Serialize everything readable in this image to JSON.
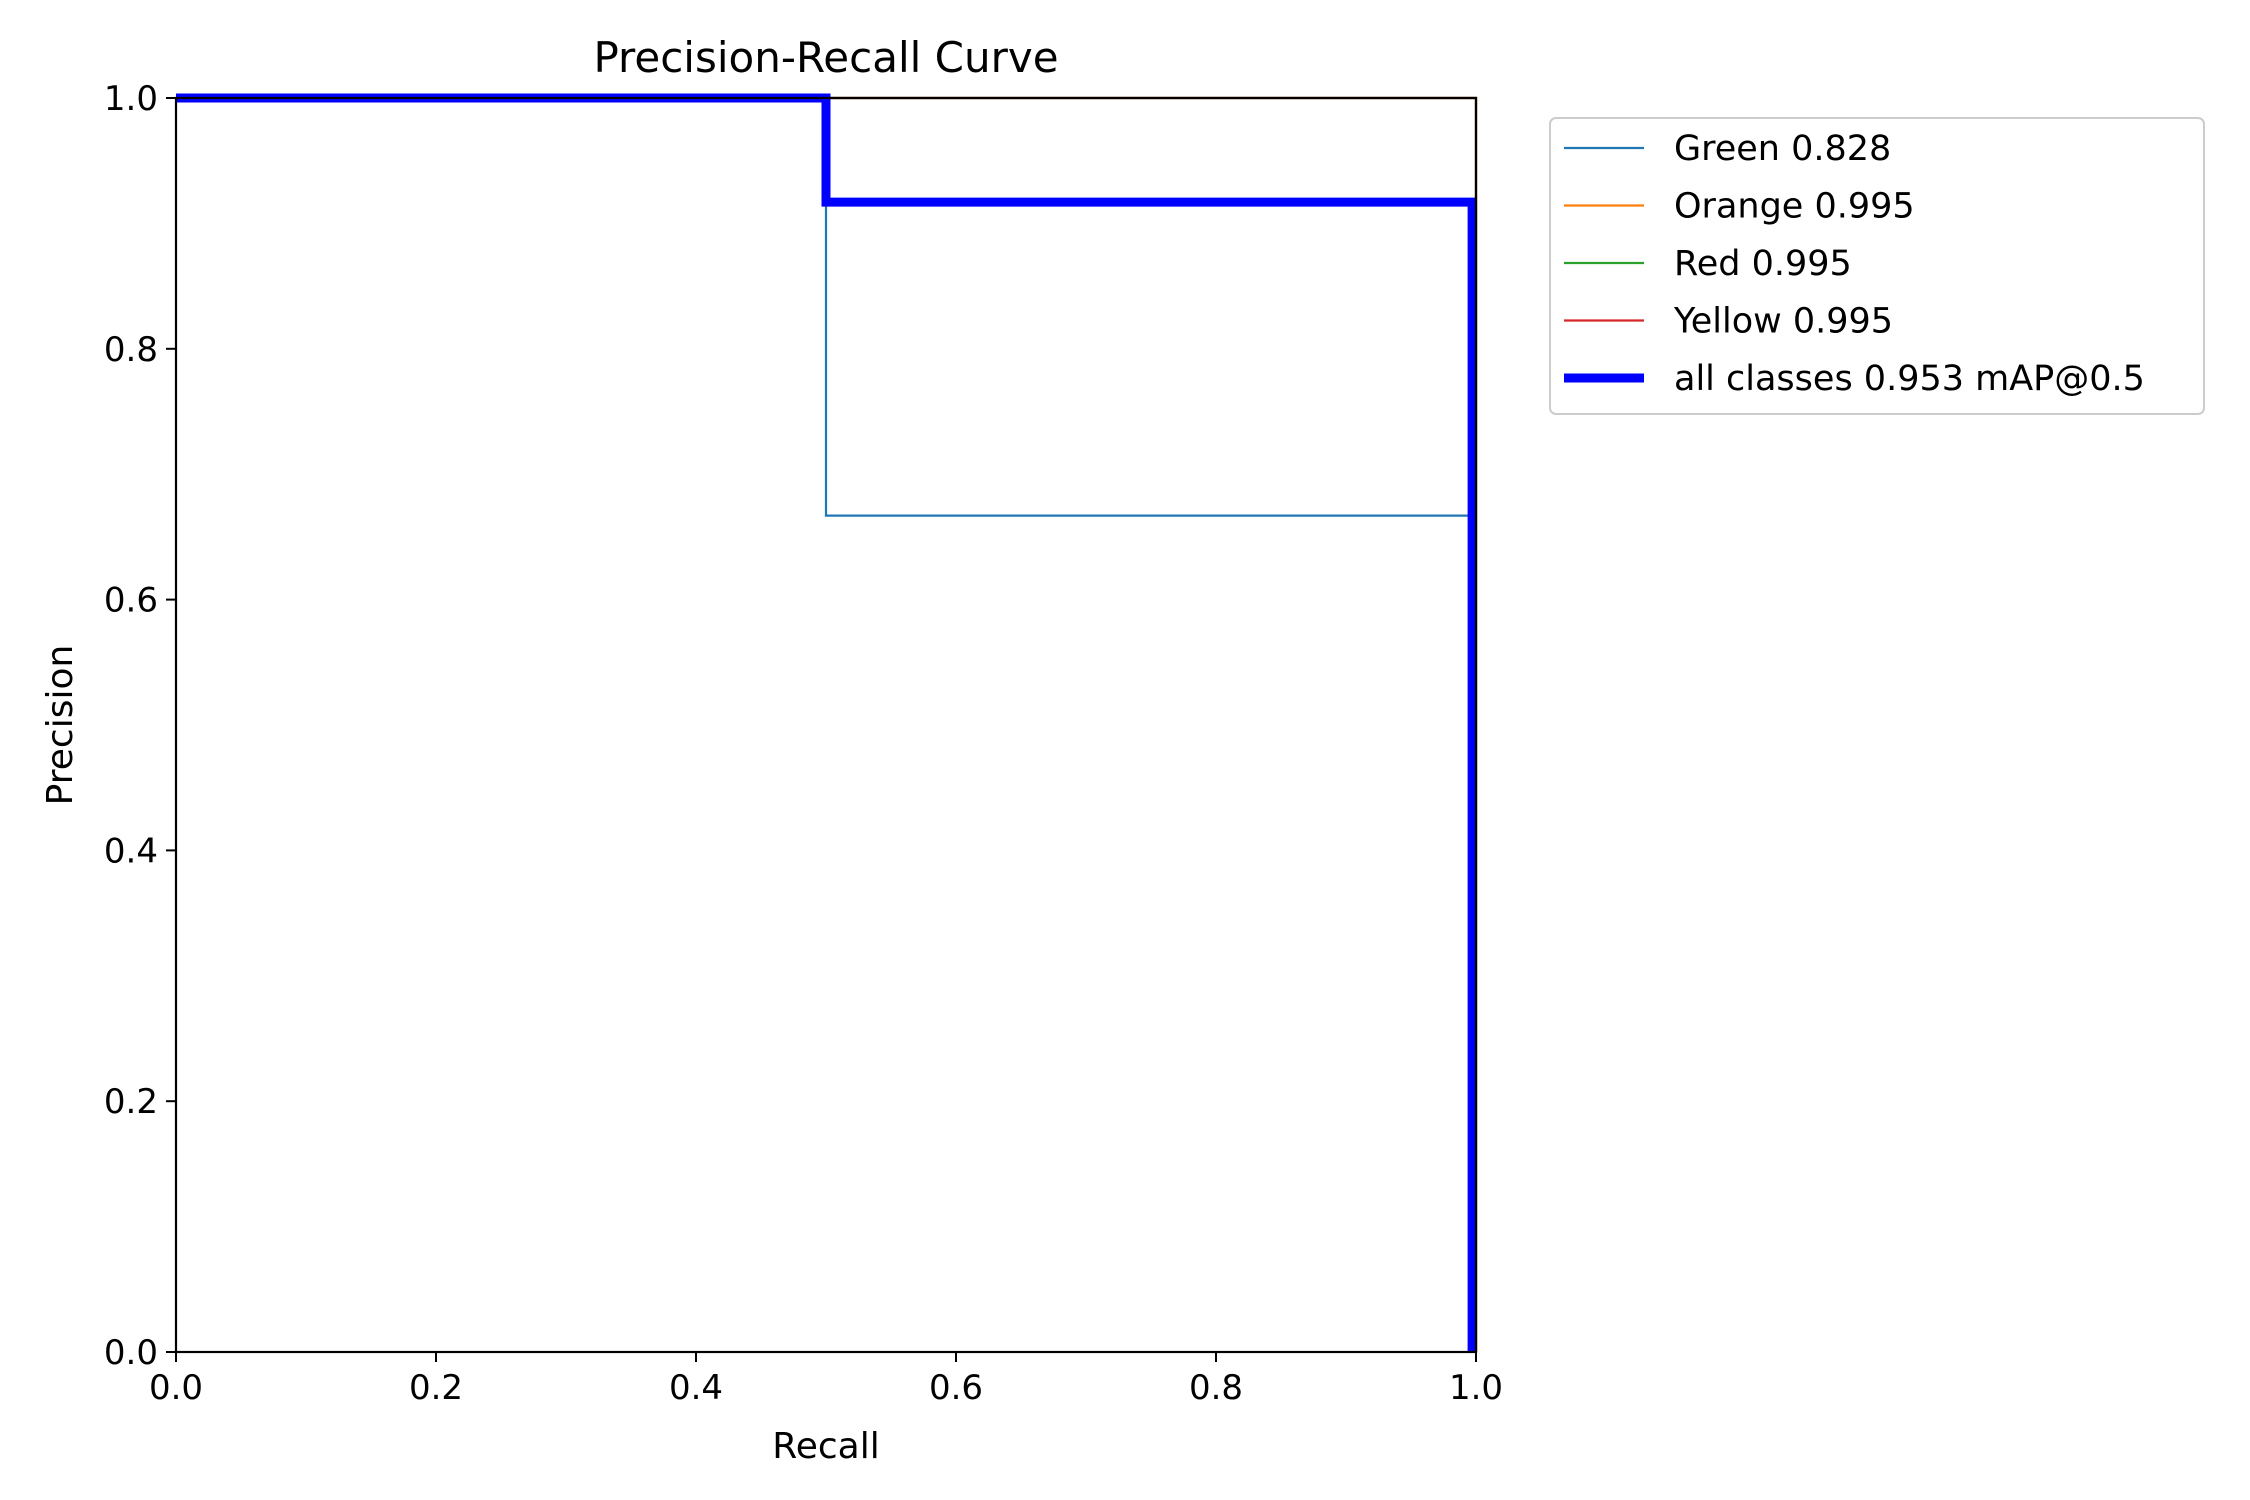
{
  "chart_data": {
    "type": "line",
    "title": "Precision-Recall Curve",
    "xlabel": "Recall",
    "ylabel": "Precision",
    "xlim": [
      0,
      1
    ],
    "ylim": [
      0,
      1
    ],
    "xticks": [
      "0.0",
      "0.2",
      "0.4",
      "0.6",
      "0.8",
      "1.0"
    ],
    "yticks": [
      "0.0",
      "0.2",
      "0.4",
      "0.6",
      "0.8",
      "1.0"
    ],
    "grid": false,
    "legend_position": "outside-top-right",
    "series": [
      {
        "name": "Green 0.828",
        "color": "#1f77b4",
        "width": "thin",
        "x": [
          0,
          0.5,
          0.5,
          0.5,
          0.5,
          0.997,
          0.997,
          1,
          1
        ],
        "y": [
          1,
          1,
          0.917,
          0.917,
          0.667,
          0.667,
          0.917,
          0.917,
          0
        ]
      },
      {
        "name": "Orange 0.995",
        "color": "#ff7f0e",
        "width": "thin",
        "x": [
          0,
          1,
          1
        ],
        "y": [
          1,
          1,
          0
        ]
      },
      {
        "name": "Red 0.995",
        "color": "#2ca02c",
        "width": "thin",
        "x": [
          0,
          1,
          1
        ],
        "y": [
          1,
          1,
          0
        ]
      },
      {
        "name": "Yellow 0.995",
        "color": "#d62728",
        "width": "thin",
        "x": [
          0,
          1,
          1
        ],
        "y": [
          1,
          1,
          0
        ]
      },
      {
        "name": "all classes 0.953 mAP@0.5",
        "color": "#0000ff",
        "width": "thick",
        "x": [
          0,
          0.5,
          0.5,
          0.997,
          0.997
        ],
        "y": [
          1,
          1,
          0.917,
          0.917,
          0
        ]
      }
    ]
  }
}
